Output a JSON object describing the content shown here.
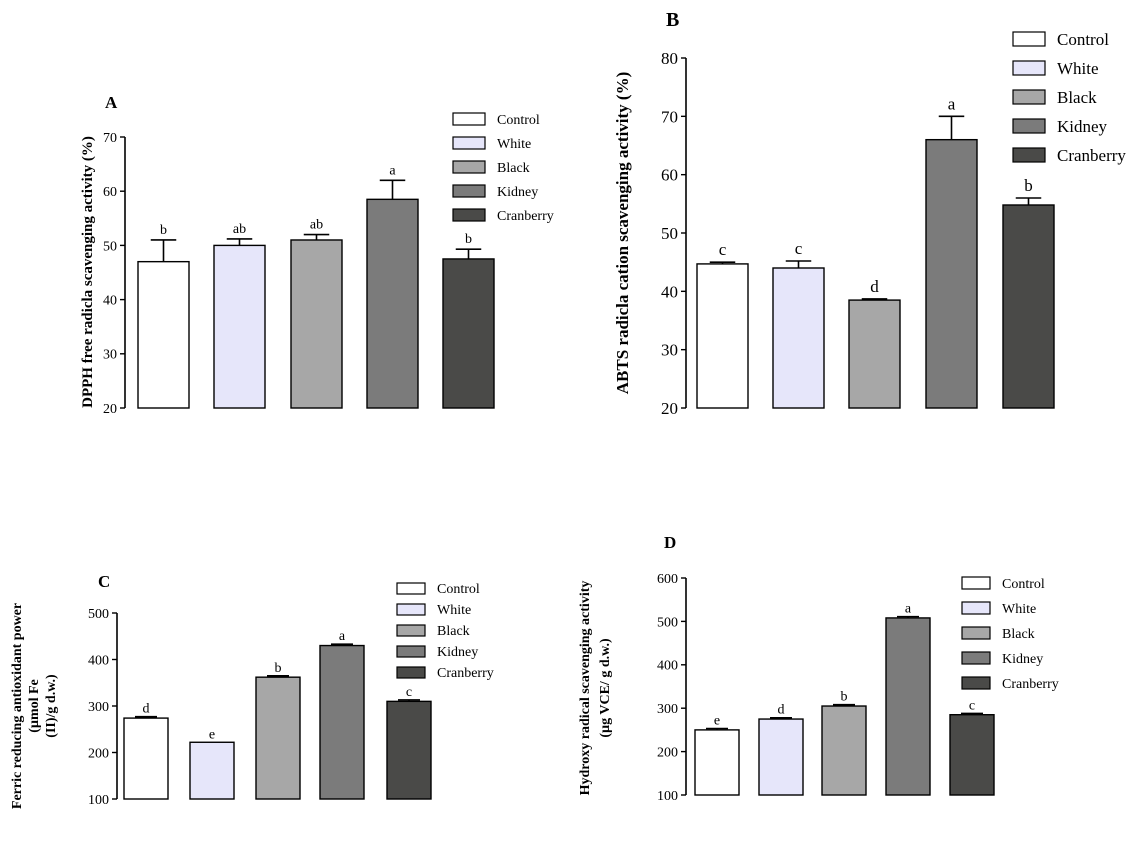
{
  "chart_data": [
    {
      "panel": "A",
      "type": "bar",
      "ylabel": [
        "DPPH free radicla scavenging activity (%)"
      ],
      "ylim": [
        20,
        70
      ],
      "yticks": [
        20,
        30,
        40,
        50,
        60,
        70
      ],
      "categories": [
        "Control",
        "White",
        "Black",
        "Kidney",
        "Cranberry"
      ],
      "values": [
        47,
        50,
        51,
        58.5,
        47.5
      ],
      "errors": [
        4,
        1.2,
        1,
        3.5,
        1.8
      ],
      "letters": [
        "b",
        "ab",
        "ab",
        "a",
        "b"
      ],
      "legend": [
        "Control",
        "White",
        "Black",
        "Kidney",
        "Cranberry"
      ],
      "legend_position": "top-right"
    },
    {
      "panel": "B",
      "type": "bar",
      "ylabel": [
        "ABTS radicla cation scavenging activity (%)"
      ],
      "ylim": [
        20,
        80
      ],
      "yticks": [
        20,
        30,
        40,
        50,
        60,
        70,
        80
      ],
      "categories": [
        "Control",
        "White",
        "Black",
        "Kidney",
        "Cranberry"
      ],
      "values": [
        44.7,
        44,
        38.5,
        66,
        54.8
      ],
      "errors": [
        0.3,
        1.2,
        0.2,
        4,
        1.2
      ],
      "letters": [
        "c",
        "c",
        "d",
        "a",
        "b"
      ],
      "legend": [
        "Control",
        "White",
        "Black",
        "Kidney",
        "Cranberry"
      ],
      "legend_position": "top-right"
    },
    {
      "panel": "C",
      "type": "bar",
      "ylabel": [
        "Ferric reducing antioxidant power",
        "(µmol Fe",
        "(II)/g d.w.)"
      ],
      "ylim": [
        100,
        500
      ],
      "yticks": [
        100,
        200,
        300,
        400,
        500
      ],
      "categories": [
        "Control",
        "White",
        "Black",
        "Kidney",
        "Cranberry"
      ],
      "values": [
        274,
        222,
        362,
        430,
        310
      ],
      "errors": [
        3,
        0,
        3,
        3,
        3
      ],
      "letters": [
        "d",
        "e",
        "b",
        "a",
        "c"
      ],
      "legend": [
        "Control",
        "White",
        "Black",
        "Kidney",
        "Cranberry"
      ],
      "legend_position": "top-right"
    },
    {
      "panel": "D",
      "type": "bar",
      "ylabel": [
        "Hydroxy radical scavenging activity",
        "(µg VCE/ g d.w.)"
      ],
      "ylim": [
        100,
        600
      ],
      "yticks": [
        100,
        200,
        300,
        400,
        500,
        600
      ],
      "categories": [
        "Control",
        "White",
        "Black",
        "Kidney",
        "Cranberry"
      ],
      "values": [
        250,
        275,
        305,
        508,
        285
      ],
      "errors": [
        3,
        3,
        3,
        3,
        3
      ],
      "letters": [
        "e",
        "d",
        "b",
        "a",
        "c"
      ],
      "legend": [
        "Control",
        "White",
        "Black",
        "Kidney",
        "Cranberry"
      ],
      "legend_position": "top-right"
    }
  ],
  "colors": {
    "bars": [
      "#ffffff",
      "#e6e6fa",
      "#a7a7a7",
      "#7b7b7b",
      "#4a4a48"
    ],
    "letters_a": "#333366",
    "axis": "#000000"
  }
}
